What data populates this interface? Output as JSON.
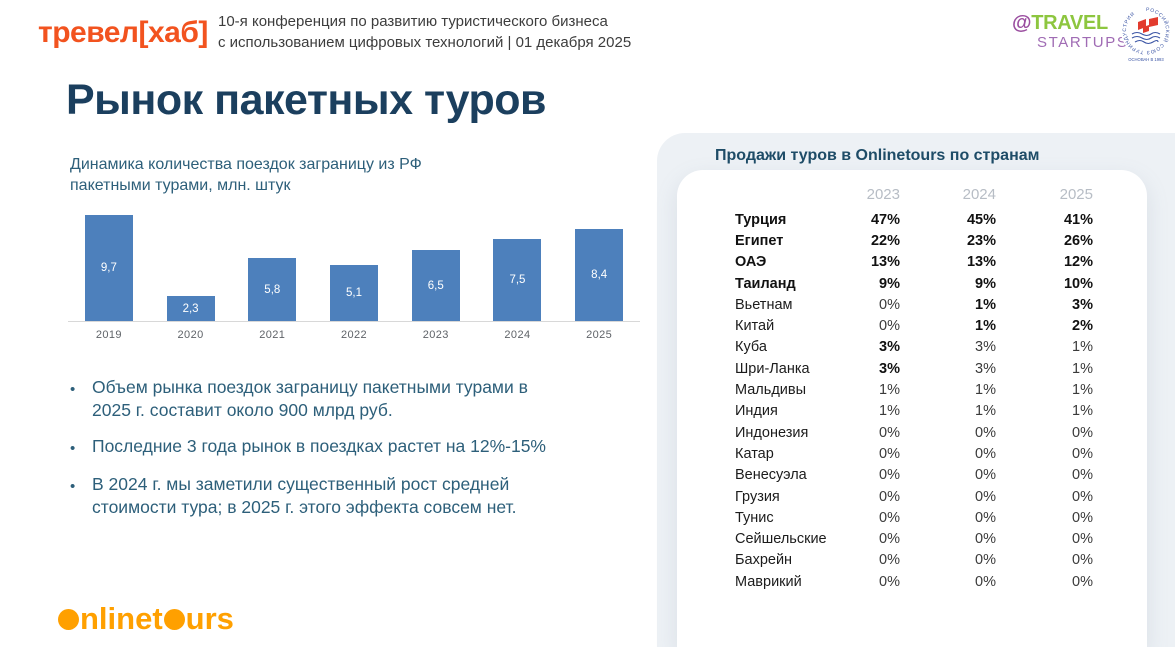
{
  "header": {
    "brand": "тревел[хаб]",
    "conference": {
      "line1": "10-я конференция по развитию туристического бизнеса",
      "line2": "с использованием цифровых технологий | 01 декабря 2025"
    },
    "travel_startups": {
      "at": "@",
      "word1": "TRAVEL",
      "word2": "STARTUPS"
    },
    "rst_emblem": {
      "ring_text": "РОССИЙСКИЙ СОЮЗ ТУРИНДУСТРИИ",
      "sub_text": "ОСНОВАН В 1993"
    }
  },
  "slide": {
    "title": "Рынок пакетных туров",
    "bullets": [
      "Объем рынка поездок заграницу пакетными турами в 2025 г. составит около 900 млрд руб.",
      "Последние 3 года рынок  в поездках растет на 12%-15%",
      "В 2024 г. мы заметили существенный рост средней стоимости тура; в 2025 г. этого эффекта совсем нет."
    ],
    "footer_logo": {
      "full": "onlinetours",
      "parts": [
        {
          "text": "o",
          "dot": true
        },
        {
          "text": "nlinet",
          "dot": false
        },
        {
          "text": "o",
          "dot": true
        },
        {
          "text": "urs",
          "dot": false
        }
      ]
    }
  },
  "chart_data": [
    {
      "type": "bar",
      "title": "Динамика количества поездок заграницу из РФ пакетными турами, млн. штук",
      "categories": [
        "2019",
        "2020",
        "2021",
        "2022",
        "2023",
        "2024",
        "2025"
      ],
      "values": [
        9.7,
        2.3,
        5.8,
        5.1,
        6.5,
        7.5,
        8.4
      ],
      "value_labels": [
        "9,7",
        "2,3",
        "5,8",
        "5,1",
        "6,5",
        "7,5",
        "8,4"
      ],
      "xlabel": "",
      "ylabel": "млн. штук",
      "ylim": [
        0,
        10
      ],
      "grid": false,
      "legend": false,
      "bar_color": "#4d80bc"
    },
    {
      "type": "table",
      "title": "Продажи туров в Onlinetours по странам",
      "columns": [
        "",
        "2023",
        "2024",
        "2025"
      ],
      "unit": "%",
      "rows": [
        {
          "country": "Турция",
          "bold": true,
          "values": [
            47,
            45,
            41
          ],
          "values_bold": [
            true,
            true,
            true
          ]
        },
        {
          "country": "Египет",
          "bold": true,
          "values": [
            22,
            23,
            26
          ],
          "values_bold": [
            true,
            true,
            true
          ]
        },
        {
          "country": "ОАЭ",
          "bold": true,
          "values": [
            13,
            13,
            12
          ],
          "values_bold": [
            true,
            true,
            true
          ]
        },
        {
          "country": "Таиланд",
          "bold": true,
          "values": [
            9,
            9,
            10
          ],
          "values_bold": [
            true,
            true,
            true
          ]
        },
        {
          "country": "Вьетнам",
          "bold": false,
          "values": [
            0,
            1,
            3
          ],
          "values_bold": [
            false,
            true,
            true
          ]
        },
        {
          "country": "Китай",
          "bold": false,
          "values": [
            0,
            1,
            2
          ],
          "values_bold": [
            false,
            true,
            true
          ]
        },
        {
          "country": "Куба",
          "bold": false,
          "values": [
            3,
            3,
            1
          ],
          "values_bold": [
            true,
            false,
            false
          ]
        },
        {
          "country": "Шри-Ланка",
          "bold": false,
          "values": [
            3,
            3,
            1
          ],
          "values_bold": [
            true,
            false,
            false
          ]
        },
        {
          "country": "Мальдивы",
          "bold": false,
          "values": [
            1,
            1,
            1
          ],
          "values_bold": [
            false,
            false,
            false
          ]
        },
        {
          "country": "Индия",
          "bold": false,
          "values": [
            1,
            1,
            1
          ],
          "values_bold": [
            false,
            false,
            false
          ]
        },
        {
          "country": "Индонезия",
          "bold": false,
          "values": [
            0,
            0,
            0
          ],
          "values_bold": [
            false,
            false,
            false
          ]
        },
        {
          "country": "Катар",
          "bold": false,
          "values": [
            0,
            0,
            0
          ],
          "values_bold": [
            false,
            false,
            false
          ]
        },
        {
          "country": "Венесуэла",
          "bold": false,
          "values": [
            0,
            0,
            0
          ],
          "values_bold": [
            false,
            false,
            false
          ]
        },
        {
          "country": "Грузия",
          "bold": false,
          "values": [
            0,
            0,
            0
          ],
          "values_bold": [
            false,
            false,
            false
          ]
        },
        {
          "country": "Тунис",
          "bold": false,
          "values": [
            0,
            0,
            0
          ],
          "values_bold": [
            false,
            false,
            false
          ]
        },
        {
          "country": "Сейшельские",
          "bold": false,
          "values": [
            0,
            0,
            0
          ],
          "values_bold": [
            false,
            false,
            false
          ]
        },
        {
          "country": "Бахрейн",
          "bold": false,
          "values": [
            0,
            0,
            0
          ],
          "values_bold": [
            false,
            false,
            false
          ]
        },
        {
          "country": "Маврикий",
          "bold": false,
          "values": [
            0,
            0,
            0
          ],
          "values_bold": [
            false,
            false,
            false
          ]
        }
      ]
    }
  ],
  "colors": {
    "brand_orange": "#f2531f",
    "onlinetours_orange": "#ffa000",
    "bar_blue": "#4d80bc",
    "title_navy": "#1b3f5e",
    "text_teal": "#2d5f7a",
    "travel_green": "#8dc63f",
    "startups_purple": "#9b4fa0",
    "panel_gray": "#edf1f5",
    "table_header_gray": "#b7bdc5",
    "emblem_blue": "#3b55a5",
    "emblem_red": "#e23b2e"
  }
}
